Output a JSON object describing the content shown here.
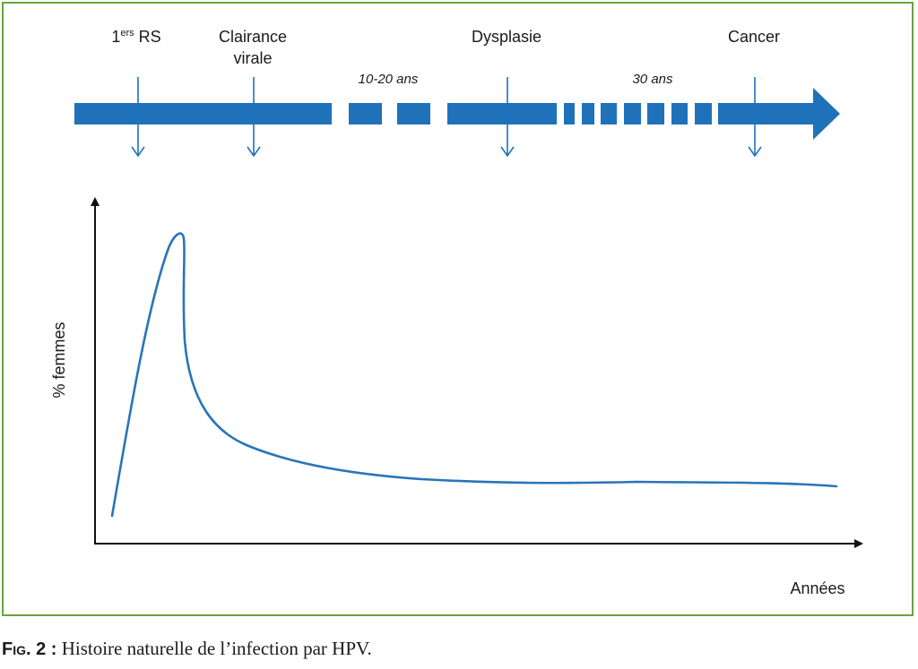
{
  "timeline": {
    "events": [
      {
        "label_main": "1",
        "label_sup": "ers",
        "label_rest": " RS"
      },
      {
        "label_line1": "Clairance",
        "label_line2": "virale"
      },
      {
        "label": "Dysplasie"
      },
      {
        "label": "Cancer"
      }
    ],
    "gaps": [
      {
        "label": "10-20 ans"
      },
      {
        "label": "30 ans"
      }
    ]
  },
  "chart": {
    "ylabel": "% femmes",
    "xlabel": "Années"
  },
  "caption": {
    "fig_label": "Fig. 2 :",
    "text": " Histoire naturelle de l’infection par HPV."
  },
  "colors": {
    "timeline_blue": "#1f72b9",
    "curve_blue": "#2a74b8",
    "frame_green": "#6ba33c",
    "axis": "#111111"
  }
}
